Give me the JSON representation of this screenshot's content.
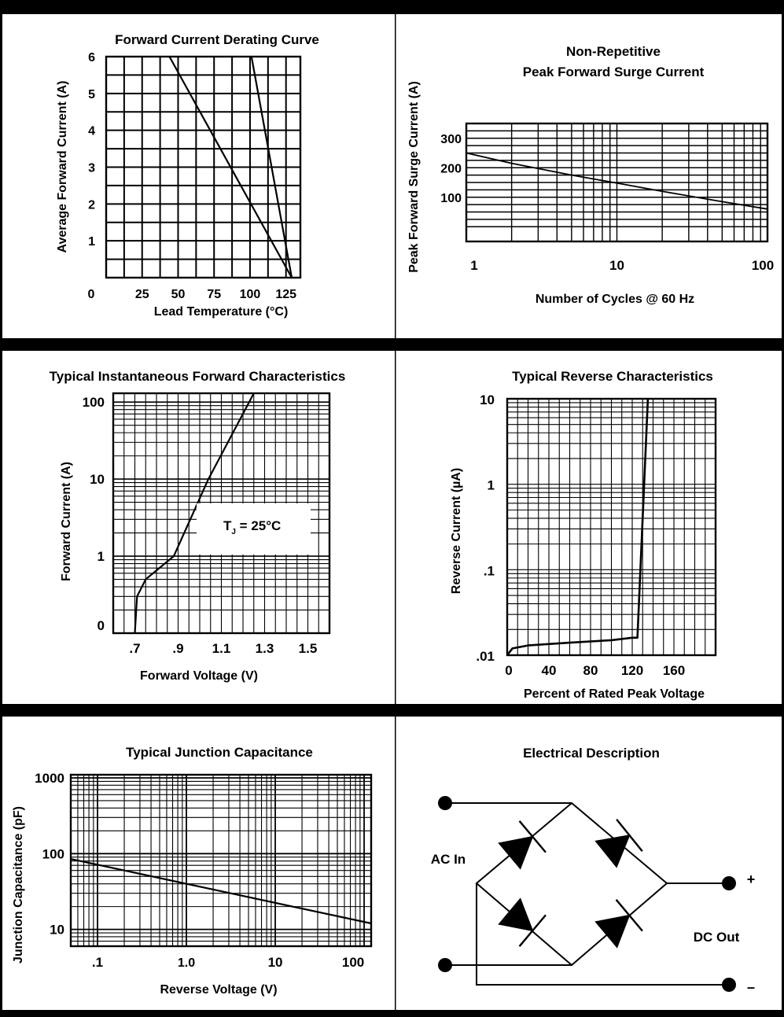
{
  "panels": {
    "derating": {
      "title": "Forward Current Derating Curve",
      "ylabel": "Average Forward Current (A)",
      "xlabel": "Lead Temperature (°C)",
      "origin_label": "0",
      "y_ticks": [
        "1",
        "2",
        "3",
        "4",
        "5",
        "6"
      ],
      "x_ticks": [
        "25",
        "50",
        "75",
        "100",
        "125"
      ]
    },
    "surge": {
      "title_line1": "Non-Repetitive",
      "title_line2": "Peak Forward Surge Current",
      "ylabel": "Peak Forward Surge Current (A)",
      "xlabel": "Number of Cycles @ 60 Hz",
      "y_ticks": [
        "100",
        "200",
        "300"
      ],
      "x_ticks": [
        "1",
        "10",
        "100"
      ]
    },
    "forward": {
      "title": "Typical Instantaneous Forward Characteristics",
      "ylabel": "Forward Current (A)",
      "xlabel": "Forward Voltage (V)",
      "y_ticks": [
        "0",
        "1",
        "10",
        "100"
      ],
      "x_ticks": [
        ".7",
        ".9",
        "1.1",
        "1.3",
        "1.5"
      ],
      "annotation_main": "T",
      "annotation_sub": "J",
      "annotation_rest": " = 25°C"
    },
    "reverse": {
      "title": "Typical Reverse Characteristics",
      "ylabel": "Reverse Current (µA)",
      "xlabel": "Percent of Rated Peak Voltage",
      "y_ticks": [
        ".01",
        ".1",
        "1",
        "10"
      ],
      "x_ticks": [
        "0",
        "40",
        "80",
        "120",
        "160"
      ]
    },
    "capacitance": {
      "title": "Typical Junction Capacitance",
      "ylabel": "Junction Capacitance (pF)",
      "xlabel": "Reverse Voltage (V)",
      "y_ticks": [
        "10",
        "100",
        "1000"
      ],
      "x_ticks": [
        ".1",
        "1.0",
        "10",
        "100"
      ]
    },
    "circuit": {
      "title": "Electrical Description",
      "ac_label": "AC In",
      "dc_label": "DC Out",
      "plus": "+",
      "minus": "–"
    }
  },
  "chart_data": [
    {
      "type": "line",
      "title": "Forward Current Derating Curve",
      "xlabel": "Lead Temperature (°C)",
      "ylabel": "Average Forward Current (A)",
      "xlim": [
        0,
        135
      ],
      "ylim": [
        0,
        6
      ],
      "grid": true,
      "series": [
        {
          "points": [
            [
              44,
              6
            ],
            [
              129,
              0
            ]
          ]
        },
        {
          "points": [
            [
              101,
              6
            ],
            [
              129,
              0
            ]
          ]
        }
      ]
    },
    {
      "type": "line",
      "title": "Non-Repetitive Peak Forward Surge Current",
      "xlabel": "Number of Cycles @ 60 Hz",
      "ylabel": "Peak Forward Surge Current (A)",
      "x_scale": "log",
      "xlim": [
        1,
        100
      ],
      "ylim": [
        -50,
        350
      ],
      "grid": true,
      "series": [
        {
          "points": [
            [
              1,
              250
            ],
            [
              2,
              215
            ],
            [
              5,
              175
            ],
            [
              10,
              148
            ],
            [
              20,
              120
            ],
            [
              50,
              85
            ],
            [
              100,
              60
            ]
          ]
        }
      ]
    },
    {
      "type": "line",
      "title": "Typical Instantaneous Forward Characteristics",
      "xlabel": "Forward Voltage (V)",
      "ylabel": "Forward Current (A)",
      "y_scale": "log",
      "xlim": [
        0.6,
        1.6
      ],
      "ylim": [
        0.1,
        130
      ],
      "grid": true,
      "annotation": "TJ = 25°C",
      "series": [
        {
          "points": [
            [
              0.7,
              0.1
            ],
            [
              0.71,
              0.3
            ],
            [
              0.75,
              0.5
            ],
            [
              0.88,
              1
            ],
            [
              1.04,
              10
            ],
            [
              1.25,
              130
            ]
          ]
        }
      ]
    },
    {
      "type": "line",
      "title": "Typical Reverse Characteristics",
      "xlabel": "Percent of Rated Peak Voltage",
      "ylabel": "Reverse Current (µA)",
      "y_scale": "log",
      "xlim": [
        0,
        200
      ],
      "ylim": [
        0.01,
        10
      ],
      "grid": true,
      "series": [
        {
          "points": [
            [
              0,
              0.01
            ],
            [
              5,
              0.012
            ],
            [
              20,
              0.013
            ],
            [
              60,
              0.014
            ],
            [
              100,
              0.015
            ],
            [
              120,
              0.016
            ],
            [
              125,
              0.016
            ],
            [
              135,
              10
            ]
          ]
        }
      ]
    },
    {
      "type": "line",
      "title": "Typical Junction Capacitance",
      "xlabel": "Reverse Voltage (V)",
      "ylabel": "Junction Capacitance (pF)",
      "x_scale": "log",
      "y_scale": "log",
      "xlim": [
        0.05,
        120
      ],
      "ylim": [
        6,
        1100
      ],
      "grid": true,
      "series": [
        {
          "points": [
            [
              0.05,
              85
            ],
            [
              120,
              12
            ]
          ]
        }
      ]
    }
  ]
}
